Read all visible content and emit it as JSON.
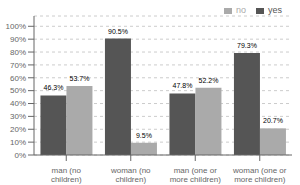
{
  "chart_data": {
    "type": "bar",
    "categories": [
      "man (no\nchildren)",
      "woman (no\nchildren)",
      "man (one or\nmore children)",
      "woman (one or\nmore children)"
    ],
    "series": [
      {
        "name": "yes",
        "color": "#555555",
        "values": [
          46.3,
          90.5,
          47.8,
          79.3
        ],
        "value_labels": [
          "46.3%",
          "90.5%",
          "47.8%",
          "79.3%"
        ]
      },
      {
        "name": "no",
        "color": "#aaaaaa",
        "values": [
          53.7,
          9.5,
          52.2,
          20.7
        ],
        "value_labels": [
          "53.7%",
          "9.5%",
          "52.2%",
          "20.7%"
        ]
      }
    ],
    "ylim": [
      0,
      108
    ],
    "yticks": [
      {
        "value": 0,
        "label": "0%"
      },
      {
        "value": 10,
        "label": "10%"
      },
      {
        "value": 20,
        "label": "20%"
      },
      {
        "value": 30,
        "label": "30%"
      },
      {
        "value": 40,
        "label": "40%"
      },
      {
        "value": 50,
        "label": "50%"
      },
      {
        "value": 60,
        "label": "60%"
      },
      {
        "value": 70,
        "label": "70%"
      },
      {
        "value": 80,
        "label": "80%"
      },
      {
        "value": 90,
        "label": "90%"
      },
      {
        "value": 100,
        "label": "100%"
      }
    ],
    "grid": true,
    "legend": "upper right",
    "data_labels": true
  }
}
